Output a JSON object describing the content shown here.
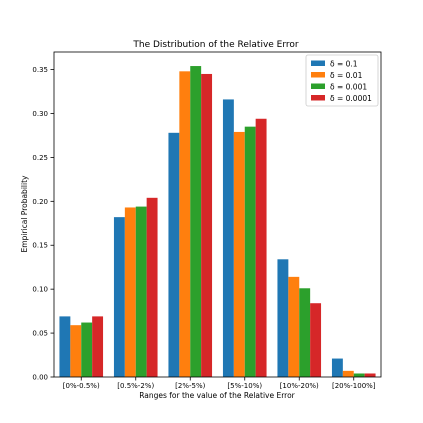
{
  "chart_data": {
    "type": "bar",
    "title": "The Distribution of the Relative Error",
    "xlabel": "Ranges for the value of the Relative Error",
    "ylabel": "Empirical Probability",
    "categories": [
      "[0%-0.5%)",
      "[0.5%-2%)",
      "[2%-5%)",
      "[5%-10%)",
      "[10%-20%)",
      "[20%-100%]"
    ],
    "ylim": [
      0,
      0.37
    ],
    "yticks": [
      0.0,
      0.05,
      0.1,
      0.15,
      0.2,
      0.25,
      0.3,
      0.35
    ],
    "ytick_labels": [
      "0.00",
      "0.05",
      "0.10",
      "0.15",
      "0.20",
      "0.25",
      "0.30",
      "0.35"
    ],
    "grid": false,
    "legend_position": "top-right",
    "series": [
      {
        "name": "δ = 0.1",
        "color": "#1f77b4",
        "values": [
          0.069,
          0.182,
          0.278,
          0.316,
          0.134,
          0.021
        ]
      },
      {
        "name": "δ = 0.01",
        "color": "#ff7f0e",
        "values": [
          0.059,
          0.193,
          0.348,
          0.279,
          0.114,
          0.007
        ]
      },
      {
        "name": "δ = 0.001",
        "color": "#2ca02c",
        "values": [
          0.062,
          0.194,
          0.354,
          0.285,
          0.101,
          0.004
        ]
      },
      {
        "name": "δ = 0.0001",
        "color": "#d62728",
        "values": [
          0.069,
          0.204,
          0.345,
          0.294,
          0.084,
          0.004
        ]
      }
    ]
  }
}
